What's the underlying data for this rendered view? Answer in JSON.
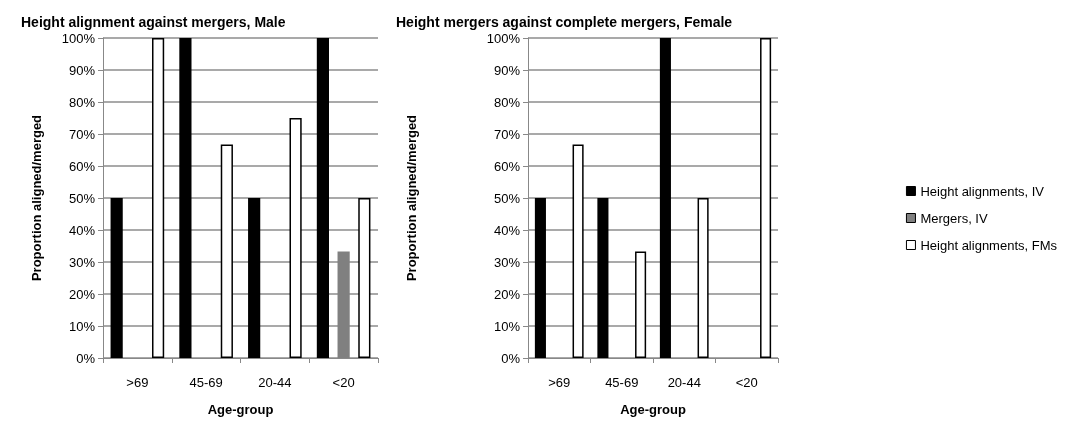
{
  "chart_data": [
    {
      "type": "bar",
      "title": "Height alignment against mergers, Male",
      "xlabel": "Age-group",
      "ylabel": "Proportion aligned/merged",
      "categories": [
        ">69",
        "45-69",
        "20-44",
        "<20"
      ],
      "series": [
        {
          "color": "#000000",
          "values": [
            50,
            100,
            50,
            100
          ]
        },
        {
          "color": "#808080",
          "values": [
            null,
            null,
            null,
            33.3
          ]
        },
        {
          "color": "#ffffff",
          "values": [
            100,
            66.7,
            75,
            50
          ]
        }
      ],
      "ylim": [
        0,
        100
      ],
      "yticks": [
        {
          "value": 0,
          "label": "0%"
        },
        {
          "value": 10,
          "label": "10%"
        },
        {
          "value": 20,
          "label": "20%"
        },
        {
          "value": 30,
          "label": "30%"
        },
        {
          "value": 40,
          "label": "40%"
        },
        {
          "value": 50,
          "label": "50%"
        },
        {
          "value": 60,
          "label": "60%"
        },
        {
          "value": 70,
          "label": "70%"
        },
        {
          "value": 80,
          "label": "80%"
        },
        {
          "value": 90,
          "label": "90%"
        },
        {
          "value": 100,
          "label": "100%"
        }
      ],
      "grid": "y",
      "legend": false
    },
    {
      "type": "bar",
      "title": "Height mergers against complete mergers, Female",
      "xlabel": "Age-group",
      "ylabel": "Proportion aligned/merged",
      "categories": [
        ">69",
        "45-69",
        "20-44",
        "<20"
      ],
      "series": [
        {
          "name": "Height alignments, IV",
          "color": "#000000",
          "values": [
            50,
            50,
            100,
            null
          ]
        },
        {
          "name": "Mergers, IV",
          "color": "#808080",
          "values": [
            null,
            null,
            null,
            null
          ]
        },
        {
          "name": "Height alignments, FMs",
          "color": "#ffffff",
          "values": [
            66.7,
            33.3,
            50,
            100
          ]
        }
      ],
      "ylim": [
        0,
        100
      ],
      "yticks": [
        {
          "value": 0,
          "label": "0%"
        },
        {
          "value": 10,
          "label": "10%"
        },
        {
          "value": 20,
          "label": "20%"
        },
        {
          "value": 30,
          "label": "30%"
        },
        {
          "value": 40,
          "label": "40%"
        },
        {
          "value": 50,
          "label": "50%"
        },
        {
          "value": 60,
          "label": "60%"
        },
        {
          "value": 70,
          "label": "70%"
        },
        {
          "value": 80,
          "label": "80%"
        },
        {
          "value": 90,
          "label": "90%"
        },
        {
          "value": 100,
          "label": "100%"
        }
      ],
      "grid": "y",
      "legend": "right"
    }
  ]
}
